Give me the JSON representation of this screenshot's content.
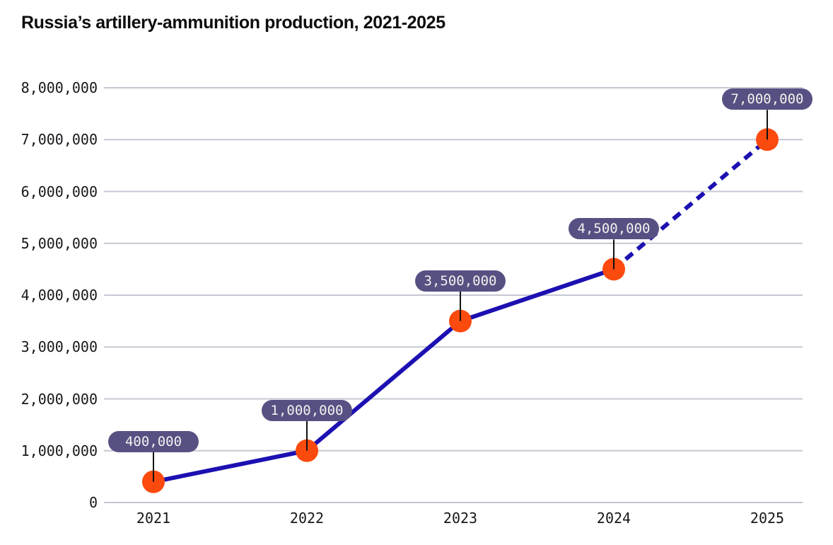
{
  "title": "Russia’s artillery-ammunition production, 2021-2025",
  "chart_data": {
    "type": "line",
    "x": [
      2021,
      2022,
      2023,
      2024,
      2025
    ],
    "x_tick_labels": [
      "2021",
      "2022",
      "2023",
      "2024",
      "2025"
    ],
    "values": [
      400000,
      1000000,
      3500000,
      4500000,
      7000000
    ],
    "point_labels": [
      "400,000",
      "1,000,000",
      "3,500,000",
      "4,500,000",
      "7,000,000"
    ],
    "y_ticks": [
      0,
      1000000,
      2000000,
      3000000,
      4000000,
      5000000,
      6000000,
      7000000,
      8000000
    ],
    "y_tick_labels": [
      "0",
      "1,000,000",
      "2,000,000",
      "3,000,000",
      "4,000,000",
      "5,000,000",
      "6,000,000",
      "7,000,000",
      "8,000,000"
    ],
    "ylim": [
      0,
      8000000
    ],
    "xlabel": "",
    "ylabel": "",
    "grid": "horizontal-only",
    "legend": "none",
    "solid_segment_x": [
      2021,
      2024
    ],
    "dashed_projection_x": [
      2024,
      2025
    ],
    "colors": {
      "line": "#1c10b2",
      "point": "#fb4a0e",
      "pill_bg": "#575183",
      "pill_text": "#f3f1ee",
      "gridline": "#c5c8d1",
      "axis_text": "#17161a",
      "title_text": "#0d0d0d",
      "connector": "#111111",
      "background": "#ffffff"
    }
  }
}
